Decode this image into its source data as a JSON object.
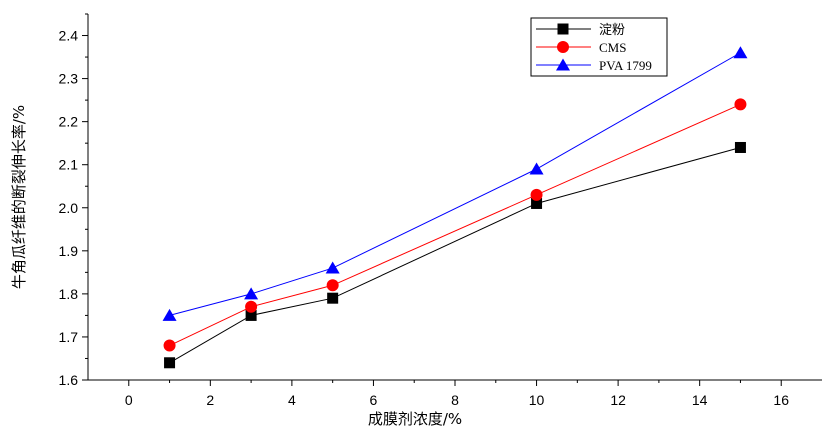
{
  "chart_data": {
    "type": "line",
    "xlabel": "成膜剂浓度/%",
    "ylabel": "牛角瓜纤维的断裂伸长率/%",
    "xlim": [
      -1,
      17
    ],
    "ylim": [
      1.6,
      2.45
    ],
    "xticks": [
      0,
      2,
      4,
      6,
      8,
      10,
      12,
      14,
      16
    ],
    "xtick_labels": [
      "0",
      "2",
      "4",
      "6",
      "8",
      "10",
      "12",
      "14",
      "16"
    ],
    "yticks": [
      1.6,
      1.7,
      1.8,
      1.9,
      2.0,
      2.1,
      2.2,
      2.3,
      2.4
    ],
    "ytick_labels": [
      "1.6",
      "1.7",
      "1.8",
      "1.9",
      "2.0",
      "2.1",
      "2.2",
      "2.3",
      "2.4"
    ],
    "grid": false,
    "legend_position": "top-right",
    "x": [
      1,
      3,
      5,
      10,
      15
    ],
    "series": [
      {
        "name": "淀粉",
        "values": [
          1.64,
          1.75,
          1.79,
          2.01,
          2.14
        ],
        "color": "#000000",
        "marker": "square"
      },
      {
        "name": "CMS",
        "values": [
          1.68,
          1.77,
          1.82,
          2.03,
          2.24
        ],
        "color": "#ff0000",
        "marker": "circle"
      },
      {
        "name": "PVA 1799",
        "values": [
          1.75,
          1.8,
          1.86,
          2.09,
          2.36
        ],
        "color": "#0000ff",
        "marker": "triangle"
      }
    ]
  }
}
